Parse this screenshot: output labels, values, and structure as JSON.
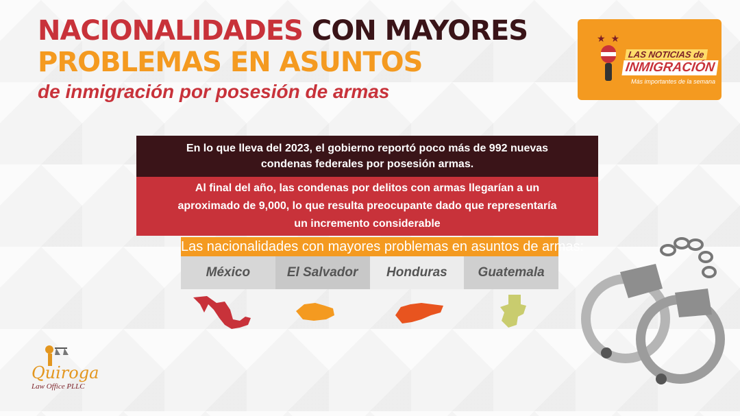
{
  "header": {
    "title_part1": "NACIONALIDADES",
    "title_part2": "CON MAYORES",
    "title_line2": "PROBLEMAS EN ASUNTOS",
    "subtitle": "de inmigración por posesión de armas"
  },
  "badge": {
    "line1": "LAS NOTICIAS de",
    "line2": "INMIGRACIÓN",
    "line3": "Más importantes de la semana"
  },
  "info": {
    "box1": "En lo que lleva del 2023, el gobierno reportó poco más de 992 nuevas condenas federales por posesión armas.",
    "box2": "Al final del año, las condenas por delitos con armas llegarían a un aproximado de 9,000, lo que resulta preocupante dado que representaría un incremento considerable"
  },
  "nationalities": {
    "heading": "Las nacionalidades con mayores problemas en asuntos de armas:",
    "items": [
      "México",
      "El Salvador",
      "Honduras",
      "Guatemala"
    ]
  },
  "colors": {
    "red": "#c8323a",
    "dark": "#3a1418",
    "orange": "#f49a20",
    "mexico": "#c8323a",
    "elsalvador": "#f49a20",
    "honduras": "#e8541f",
    "guatemala": "#c9cc6e"
  },
  "logo": {
    "name": "Quiroga",
    "sub": "Law Office PLLC"
  }
}
